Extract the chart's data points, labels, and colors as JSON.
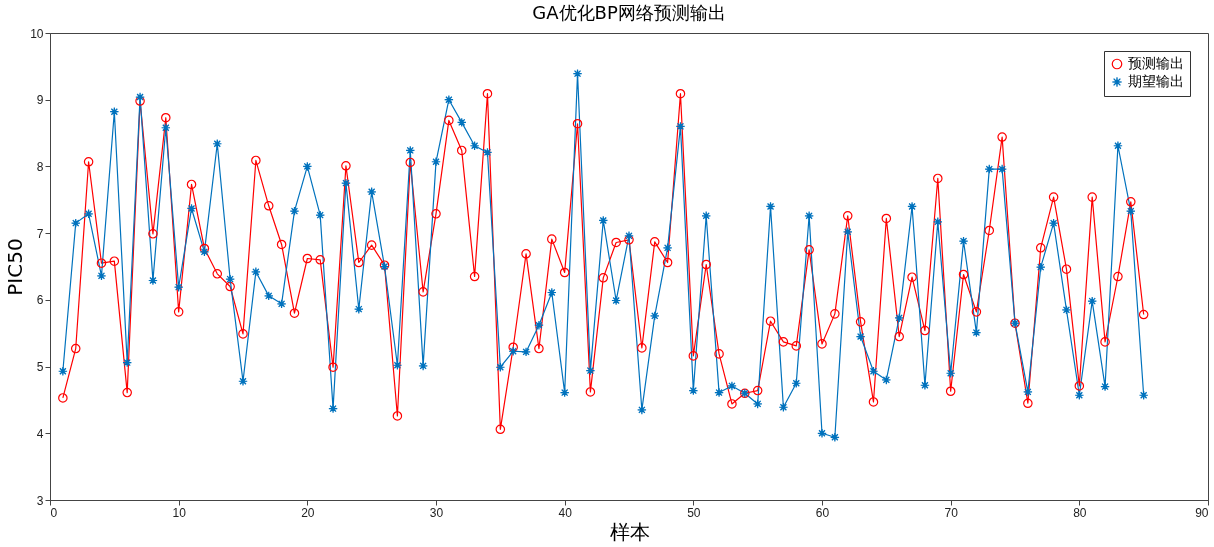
{
  "chart_data": {
    "type": "line",
    "title": "GA优化BP网络预测输出",
    "xlabel": "样本",
    "ylabel": "PIC50",
    "x": [
      1,
      2,
      3,
      4,
      5,
      6,
      7,
      8,
      9,
      10,
      11,
      12,
      13,
      14,
      15,
      16,
      17,
      18,
      19,
      20,
      21,
      22,
      23,
      24,
      25,
      26,
      27,
      28,
      29,
      30,
      31,
      32,
      33,
      34,
      35,
      36,
      37,
      38,
      39,
      40,
      41,
      42,
      43,
      44,
      45,
      46,
      47,
      48,
      49,
      50,
      51,
      52,
      53,
      54,
      55,
      56,
      57,
      58,
      59,
      60,
      61,
      62,
      63,
      64,
      65,
      66,
      67,
      68,
      69,
      70,
      71,
      72,
      73,
      74,
      75,
      76,
      77,
      78,
      79,
      80,
      81,
      82,
      83,
      84,
      85
    ],
    "series": [
      {
        "name": "预测输出",
        "color": "#ff0000",
        "marker": "circle",
        "values": [
          4.53,
          5.27,
          8.07,
          6.55,
          6.58,
          4.61,
          8.98,
          6.99,
          8.73,
          5.82,
          7.73,
          6.77,
          6.39,
          6.2,
          5.49,
          8.09,
          7.41,
          6.83,
          5.8,
          6.62,
          6.6,
          4.99,
          8.01,
          6.56,
          6.82,
          6.52,
          4.26,
          8.06,
          6.12,
          7.29,
          8.69,
          8.24,
          6.35,
          9.09,
          4.06,
          5.29,
          6.69,
          5.27,
          6.91,
          6.41,
          8.64,
          4.62,
          6.33,
          6.86,
          6.9,
          5.28,
          6.87,
          6.56,
          9.09,
          5.16,
          6.53,
          5.19,
          4.44,
          4.6,
          4.64,
          5.68,
          5.37,
          5.31,
          6.75,
          5.34,
          5.79,
          7.26,
          5.67,
          4.47,
          7.22,
          5.45,
          6.34,
          5.54,
          7.82,
          4.63,
          6.38,
          5.82,
          7.04,
          8.44,
          5.65,
          4.45,
          6.78,
          7.54,
          6.46,
          4.71,
          7.54,
          5.37,
          6.35,
          7.47,
          5.78
        ]
      },
      {
        "name": "期望输出",
        "color": "#0072bd",
        "marker": "star",
        "values": [
          4.93,
          7.15,
          7.29,
          6.36,
          8.82,
          5.06,
          9.04,
          6.29,
          8.58,
          6.19,
          7.37,
          6.72,
          8.34,
          6.31,
          4.78,
          6.42,
          6.06,
          5.94,
          7.33,
          8.0,
          7.27,
          4.37,
          7.75,
          5.86,
          7.62,
          6.5,
          5.02,
          8.24,
          5.01,
          8.07,
          9.0,
          8.66,
          8.31,
          8.21,
          4.99,
          5.23,
          5.22,
          5.62,
          6.11,
          4.61,
          9.39,
          4.94,
          7.19,
          5.99,
          6.96,
          4.35,
          5.76,
          6.78,
          8.6,
          4.64,
          7.26,
          4.61,
          4.71,
          4.6,
          4.44,
          7.4,
          4.39,
          4.75,
          7.26,
          4.0,
          3.94,
          7.02,
          5.45,
          4.93,
          4.8,
          5.73,
          7.4,
          4.72,
          7.17,
          4.9,
          6.88,
          5.51,
          7.96,
          7.96,
          5.65,
          4.62,
          6.49,
          7.15,
          5.85,
          4.57,
          5.98,
          4.7,
          8.31,
          7.33,
          4.57
        ]
      }
    ],
    "xlim": [
      0,
      90
    ],
    "xticks": [
      0,
      10,
      20,
      30,
      40,
      50,
      60,
      70,
      80,
      90
    ],
    "ylim": [
      3,
      10
    ],
    "yticks": [
      3,
      4,
      5,
      6,
      7,
      8,
      9,
      10
    ],
    "grid": false,
    "legend": "top right",
    "line_style": "solid"
  }
}
